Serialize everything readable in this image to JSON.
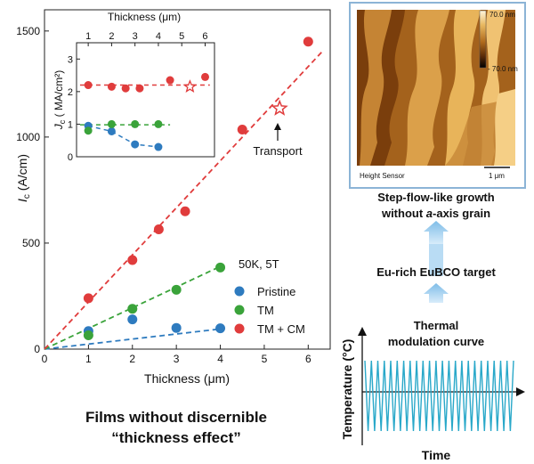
{
  "chart_data": [
    {
      "type": "scatter",
      "xlabel": "Thickness (μm)",
      "ylabel": "I_c (A/cm)",
      "xlim": [
        0,
        6.5
      ],
      "ylim": [
        0,
        1600
      ],
      "xticks": [
        0,
        1,
        2,
        3,
        4,
        5,
        6
      ],
      "yticks": [
        0,
        500,
        1000,
        1500
      ],
      "legend_title": "50K, 5T",
      "legend_position": "lower-right",
      "series": [
        {
          "name": "Pristine",
          "color": "#2e7bbf",
          "x": [
            1,
            2,
            3,
            4
          ],
          "y": [
            85,
            140,
            100,
            98
          ],
          "fit_end": [
            4,
            95
          ]
        },
        {
          "name": "TM",
          "color": "#3aa33a",
          "x": [
            1,
            2,
            3,
            4
          ],
          "y": [
            65,
            190,
            280,
            385
          ],
          "fit_end": [
            4,
            390
          ]
        },
        {
          "name": "TM + CM",
          "color": "#e03c3c",
          "x": [
            1,
            2,
            2.6,
            3.2,
            4.5,
            6
          ],
          "y": [
            240,
            420,
            565,
            650,
            1035,
            1450
          ],
          "fit_end": [
            6.35,
            1410
          ]
        }
      ],
      "transport_marker": {
        "x": 5.35,
        "y": 1135,
        "label": "Transport",
        "color": "#e03c3c"
      }
    },
    {
      "type": "scatter",
      "role": "inset",
      "xlabel": "Thickness (μm)",
      "ylabel": "J_c (MA/cm²)",
      "xlim": [
        0.5,
        6.4
      ],
      "ylim": [
        0,
        3.5
      ],
      "xticks": [
        1,
        2,
        3,
        4,
        5,
        6
      ],
      "yticks": [
        0,
        1,
        2,
        3
      ],
      "series": [
        {
          "name": "Pristine",
          "color": "#2e7bbf",
          "x": [
            1,
            2,
            3,
            4
          ],
          "y": [
            0.95,
            0.78,
            0.38,
            0.3
          ]
        },
        {
          "name": "TM",
          "color": "#3aa33a",
          "x": [
            1,
            2,
            3,
            4
          ],
          "y": [
            0.8,
            1.0,
            1.0,
            1.0
          ]
        },
        {
          "name": "TM + CM",
          "color": "#e03c3c",
          "x": [
            1,
            2,
            2.6,
            3.2,
            4.5,
            6
          ],
          "y": [
            2.2,
            2.15,
            2.1,
            2.1,
            2.35,
            2.45
          ]
        }
      ],
      "transport_marker": {
        "x": 5.35,
        "y": 2.15
      }
    },
    {
      "type": "line",
      "role": "thermal-modulation-curve",
      "title": "Thermal modulation curve",
      "xlabel": "Time",
      "ylabel": "Temperature (°C)",
      "cycles": 23,
      "color": "#29a8c9"
    }
  ],
  "afm": {
    "scale_max": "70.0 nm",
    "scale_min": "- 70.0 nm",
    "sensor_label": "Height Sensor",
    "scalebar_label": "1 μm"
  },
  "labels": {
    "growth_line1": "Step-flow-like growth",
    "growth_line2_pre": "without ",
    "growth_line2_italic": "a",
    "growth_line2_post": "-axis grain",
    "target": "Eu-rich EuBCO target",
    "bottom_line1": "Films without discernible",
    "bottom_line2": "“thickness effect”"
  }
}
